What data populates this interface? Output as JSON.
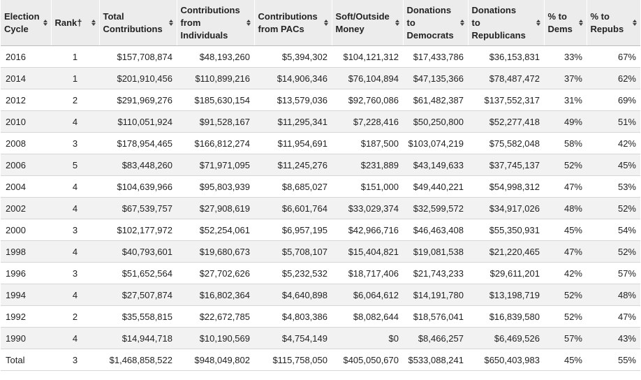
{
  "columns": [
    {
      "key": "cycle",
      "label": "Election\nCycle"
    },
    {
      "key": "rank",
      "label": "Rank†"
    },
    {
      "key": "total",
      "label": "Total\nContributions"
    },
    {
      "key": "individuals",
      "label": "Contributions\nfrom\nIndividuals"
    },
    {
      "key": "pacs",
      "label": "Contributions\nfrom PACs"
    },
    {
      "key": "soft",
      "label": "Soft/Outside\nMoney"
    },
    {
      "key": "dems",
      "label": "Donations\nto\nDemocrats"
    },
    {
      "key": "repubs",
      "label": "Donations\nto\nRepublicans"
    },
    {
      "key": "pct_dems",
      "label": "% to\nDems"
    },
    {
      "key": "pct_repubs",
      "label": "% to\nRepubs"
    }
  ],
  "icons": {
    "sort": "sort-arrows-icon"
  },
  "chart_data": {
    "type": "table",
    "rows": [
      [
        "2016",
        "1",
        "$157,708,874",
        "$48,193,260",
        "$5,394,302",
        "$104,121,312",
        "$17,433,786",
        "$36,153,831",
        "33%",
        "67%"
      ],
      [
        "2014",
        "1",
        "$201,910,456",
        "$110,899,216",
        "$14,906,346",
        "$76,104,894",
        "$47,135,366",
        "$78,487,472",
        "37%",
        "62%"
      ],
      [
        "2012",
        "2",
        "$291,969,276",
        "$185,630,154",
        "$13,579,036",
        "$92,760,086",
        "$61,482,387",
        "$137,552,317",
        "31%",
        "69%"
      ],
      [
        "2010",
        "4",
        "$110,051,924",
        "$91,528,167",
        "$11,295,341",
        "$7,228,416",
        "$50,250,800",
        "$52,277,418",
        "49%",
        "51%"
      ],
      [
        "2008",
        "3",
        "$178,954,465",
        "$166,812,274",
        "$11,954,691",
        "$187,500",
        "$103,074,219",
        "$75,582,048",
        "58%",
        "42%"
      ],
      [
        "2006",
        "5",
        "$83,448,260",
        "$71,971,095",
        "$11,245,276",
        "$231,889",
        "$43,149,633",
        "$37,745,137",
        "52%",
        "45%"
      ],
      [
        "2004",
        "4",
        "$104,639,966",
        "$95,803,939",
        "$8,685,027",
        "$151,000",
        "$49,440,221",
        "$54,998,312",
        "47%",
        "53%"
      ],
      [
        "2002",
        "4",
        "$67,539,757",
        "$27,908,619",
        "$6,601,764",
        "$33,029,374",
        "$32,599,572",
        "$34,917,026",
        "48%",
        "52%"
      ],
      [
        "2000",
        "3",
        "$102,177,972",
        "$52,254,061",
        "$6,957,195",
        "$42,966,716",
        "$46,463,408",
        "$55,350,931",
        "45%",
        "54%"
      ],
      [
        "1998",
        "4",
        "$40,793,601",
        "$19,680,673",
        "$5,708,107",
        "$15,404,821",
        "$19,081,538",
        "$21,220,465",
        "47%",
        "52%"
      ],
      [
        "1996",
        "3",
        "$51,652,564",
        "$27,702,626",
        "$5,232,532",
        "$18,717,406",
        "$21,743,233",
        "$29,611,201",
        "42%",
        "57%"
      ],
      [
        "1994",
        "4",
        "$27,507,874",
        "$16,802,364",
        "$4,640,898",
        "$6,064,612",
        "$14,191,780",
        "$13,198,719",
        "52%",
        "48%"
      ],
      [
        "1992",
        "2",
        "$35,558,815",
        "$22,672,785",
        "$4,803,386",
        "$8,082,644",
        "$18,576,041",
        "$16,839,580",
        "52%",
        "47%"
      ],
      [
        "1990",
        "4",
        "$14,944,718",
        "$10,190,569",
        "$4,754,149",
        "$0",
        "$8,466,257",
        "$6,469,526",
        "57%",
        "43%"
      ],
      [
        "Total",
        "3",
        "$1,468,858,522",
        "$948,049,802",
        "$115,758,050",
        "$405,050,670",
        "$533,088,241",
        "$650,403,983",
        "45%",
        "55%"
      ]
    ]
  }
}
